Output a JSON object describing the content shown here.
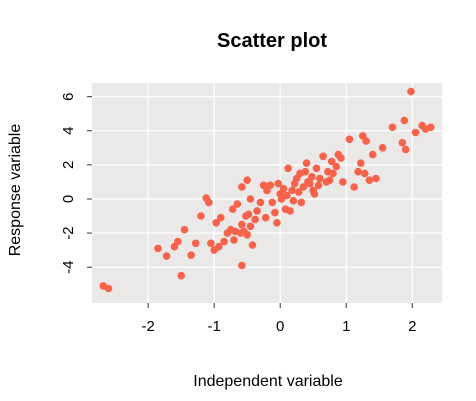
{
  "chart_data": {
    "type": "scatter",
    "title": "Scatter plot",
    "xlabel": "Independent variable",
    "ylabel": "Response variable",
    "xlim": [
      -2.85,
      2.45
    ],
    "ylim": [
      -6.1,
      6.8
    ],
    "xticks": [
      -2,
      -1,
      0,
      1,
      2
    ],
    "yticks": [
      -4,
      -2,
      0,
      2,
      4,
      6
    ],
    "grid": true,
    "panel_color": "#ebe8e8",
    "point_color": "#f7624a",
    "series": [
      {
        "points": [
          [
            -2.68,
            -5.1
          ],
          [
            -2.6,
            -5.25
          ],
          [
            -1.85,
            -2.9
          ],
          [
            -1.72,
            -3.35
          ],
          [
            -1.6,
            -2.8
          ],
          [
            -1.55,
            -2.5
          ],
          [
            -1.5,
            -4.5
          ],
          [
            -1.45,
            -1.8
          ],
          [
            -1.35,
            -3.3
          ],
          [
            -1.28,
            -2.6
          ],
          [
            -1.2,
            -1.0
          ],
          [
            -1.12,
            0.05
          ],
          [
            -1.08,
            -0.2
          ],
          [
            -1.05,
            -2.6
          ],
          [
            -1.0,
            -3.0
          ],
          [
            -0.97,
            -1.4
          ],
          [
            -0.93,
            -2.8
          ],
          [
            -0.9,
            -1.1
          ],
          [
            -0.85,
            -2.5
          ],
          [
            -0.8,
            -2.0
          ],
          [
            -0.75,
            -1.8
          ],
          [
            -0.72,
            -0.6
          ],
          [
            -0.7,
            -2.4
          ],
          [
            -0.68,
            -1.9
          ],
          [
            -0.65,
            -0.3
          ],
          [
            -0.6,
            -2.0
          ],
          [
            -0.58,
            -1.5
          ],
          [
            -0.55,
            -1.9
          ],
          [
            -0.52,
            -1.0
          ],
          [
            -0.5,
            -2.1
          ],
          [
            -0.48,
            -0.9
          ],
          [
            -0.45,
            -1.6
          ],
          [
            -0.42,
            -2.7
          ],
          [
            -0.58,
            -3.9
          ],
          [
            -0.58,
            0.7
          ],
          [
            -0.5,
            1.1
          ],
          [
            -0.45,
            0.0
          ],
          [
            -0.38,
            -1.2
          ],
          [
            -0.35,
            -0.7
          ],
          [
            -0.3,
            -0.2
          ],
          [
            -0.25,
            0.8
          ],
          [
            -0.22,
            -1.1
          ],
          [
            -0.2,
            0.5
          ],
          [
            -0.15,
            0.8
          ],
          [
            -0.12,
            -0.2
          ],
          [
            -0.08,
            -0.8
          ],
          [
            -0.05,
            -1.4
          ],
          [
            -0.03,
            0.9
          ],
          [
            0.0,
            0.3
          ],
          [
            0.02,
            0.0
          ],
          [
            0.05,
            0.6
          ],
          [
            0.08,
            -0.6
          ],
          [
            0.1,
            0.2
          ],
          [
            0.12,
            1.8
          ],
          [
            0.15,
            -0.7
          ],
          [
            0.18,
            0.5
          ],
          [
            0.2,
            -0.1
          ],
          [
            0.22,
            0.9
          ],
          [
            0.25,
            1.2
          ],
          [
            0.28,
            0.4
          ],
          [
            0.3,
            1.5
          ],
          [
            0.32,
            -0.2
          ],
          [
            0.35,
            0.7
          ],
          [
            0.38,
            1.6
          ],
          [
            0.4,
            2.1
          ],
          [
            0.42,
            1.0
          ],
          [
            0.45,
            0.9
          ],
          [
            0.48,
            1.3
          ],
          [
            0.5,
            0.5
          ],
          [
            0.52,
            0.3
          ],
          [
            0.55,
            1.8
          ],
          [
            0.58,
            0.8
          ],
          [
            0.6,
            1.2
          ],
          [
            0.65,
            2.5
          ],
          [
            0.7,
            1.0
          ],
          [
            0.72,
            1.6
          ],
          [
            0.75,
            1.1
          ],
          [
            0.78,
            2.2
          ],
          [
            0.8,
            1.5
          ],
          [
            0.85,
            1.9
          ],
          [
            0.88,
            2.6
          ],
          [
            0.92,
            2.4
          ],
          [
            0.95,
            1.0
          ],
          [
            1.05,
            3.5
          ],
          [
            1.12,
            0.7
          ],
          [
            1.18,
            1.6
          ],
          [
            1.22,
            2.1
          ],
          [
            1.25,
            3.7
          ],
          [
            1.28,
            1.5
          ],
          [
            1.3,
            3.4
          ],
          [
            1.35,
            1.1
          ],
          [
            1.4,
            2.6
          ],
          [
            1.45,
            1.2
          ],
          [
            1.55,
            3.0
          ],
          [
            1.7,
            4.2
          ],
          [
            1.85,
            3.3
          ],
          [
            1.88,
            4.6
          ],
          [
            1.9,
            2.9
          ],
          [
            1.98,
            6.3
          ],
          [
            2.05,
            3.9
          ],
          [
            2.15,
            4.3
          ],
          [
            2.2,
            4.1
          ],
          [
            2.28,
            4.2
          ]
        ]
      }
    ]
  }
}
